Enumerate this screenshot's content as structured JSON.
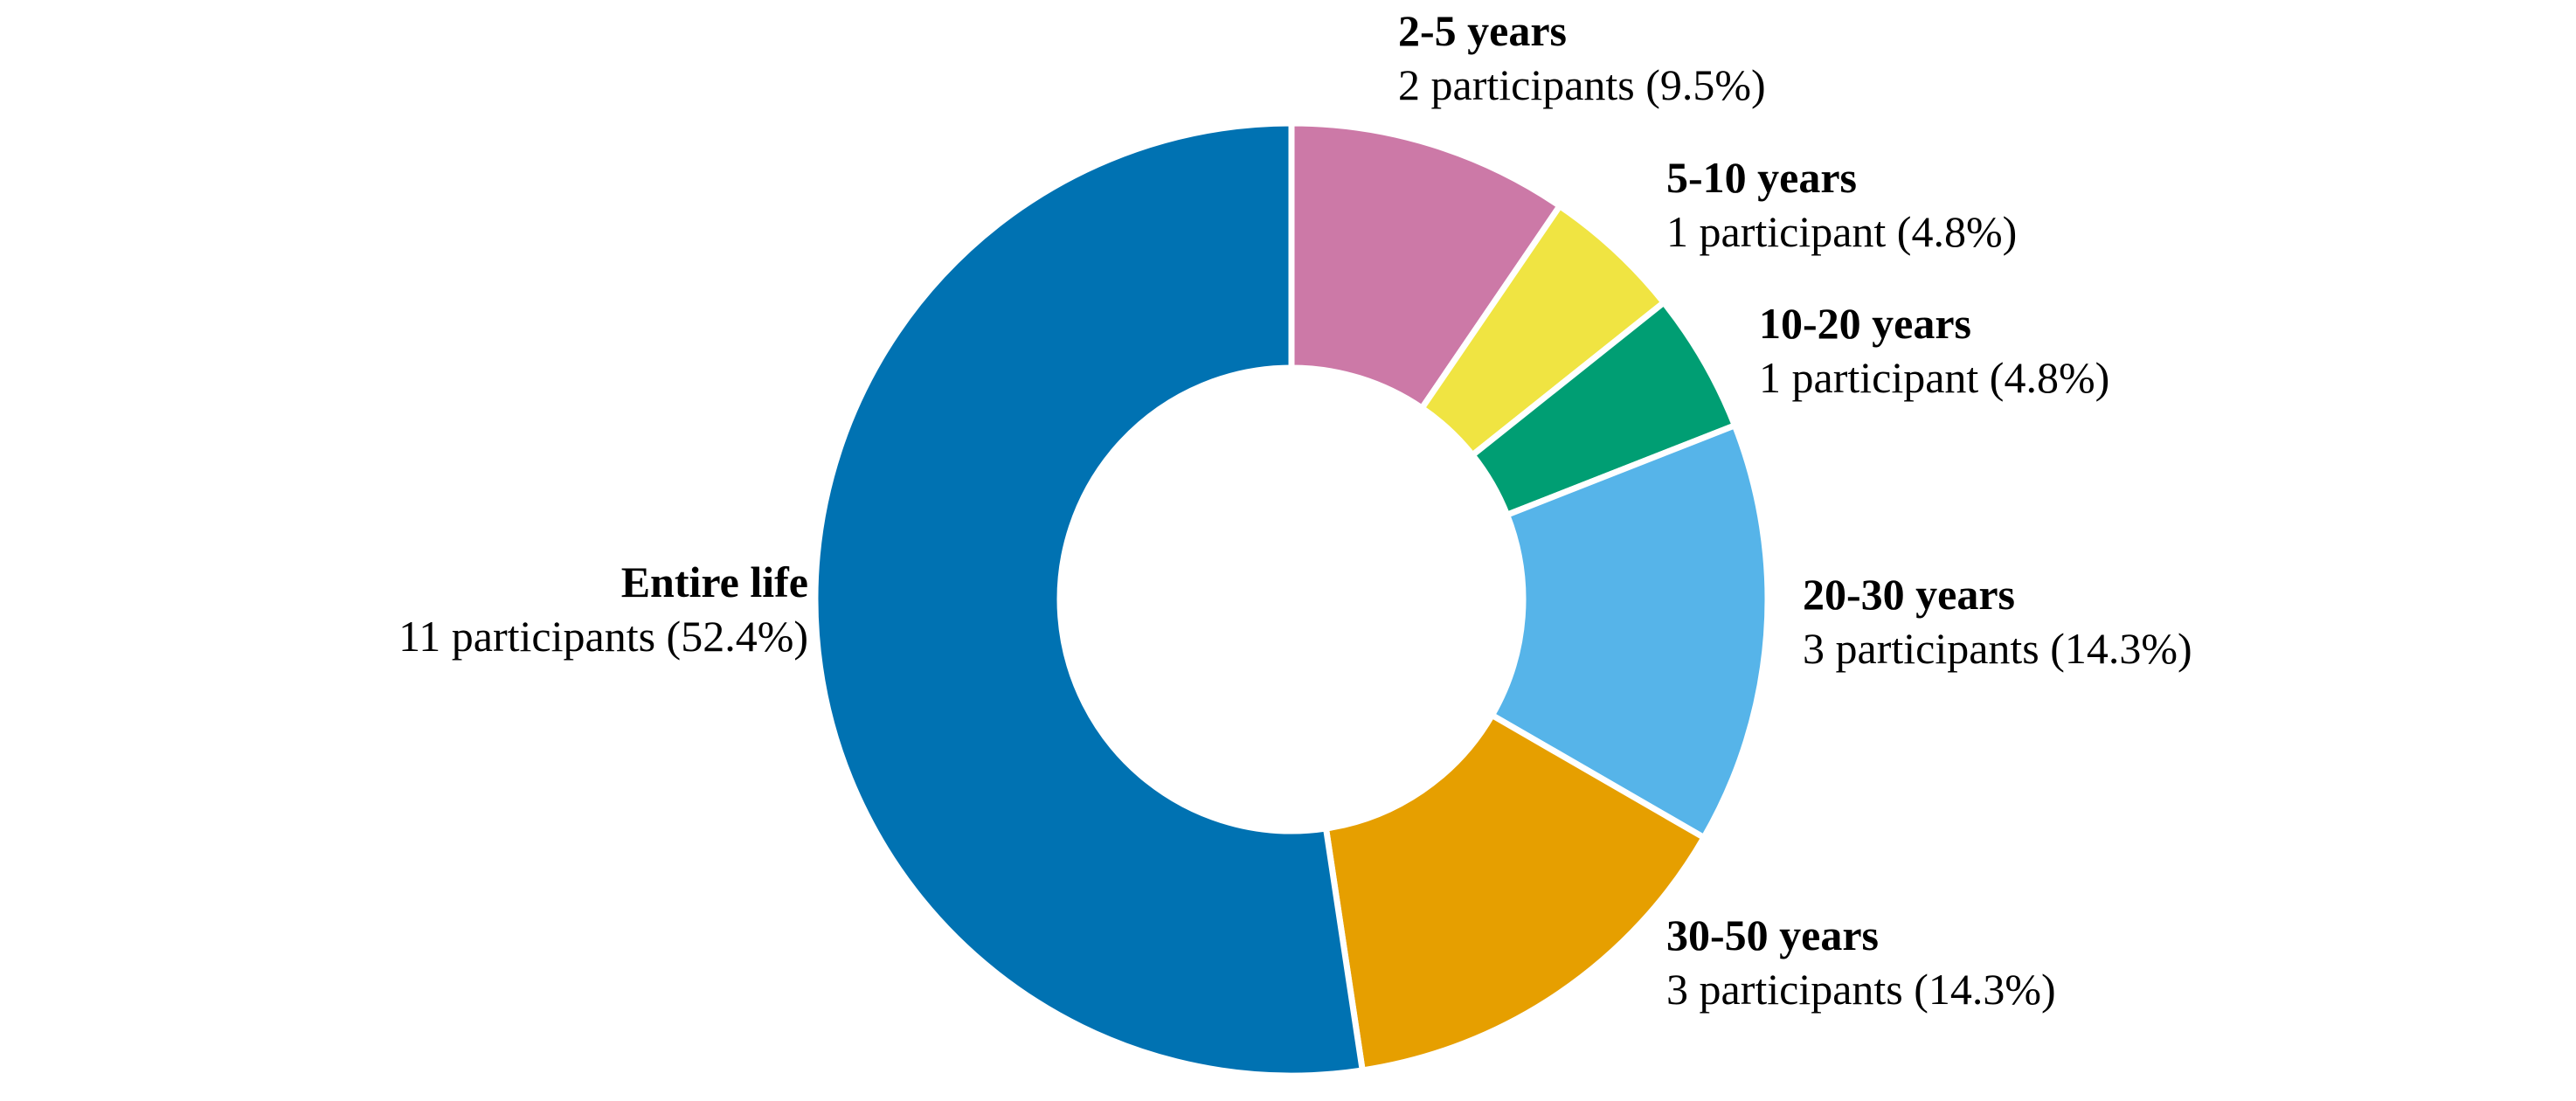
{
  "chart_data": {
    "type": "pie",
    "donut": true,
    "title": "",
    "categories": [
      "Entire life",
      "2-5 years",
      "5-10 years",
      "10-20 years",
      "20-30 years",
      "30-50 years"
    ],
    "values": [
      11,
      2,
      1,
      1,
      3,
      3
    ],
    "percentages": [
      52.4,
      9.5,
      4.8,
      4.8,
      14.3,
      14.3
    ],
    "value_labels": [
      "11 participants (52.4%)",
      "2 participants (9.5%)",
      "1 participant (4.8%)",
      "1 participant (4.8%)",
      "3 participants (14.3%)",
      "3 participants (14.3%)"
    ],
    "colors": [
      "#0072B2",
      "#CC79A7",
      "#F0E442",
      "#009E73",
      "#56B4E9",
      "#E69F00"
    ],
    "legend": "none",
    "start": "top",
    "direction": "clockwise"
  }
}
